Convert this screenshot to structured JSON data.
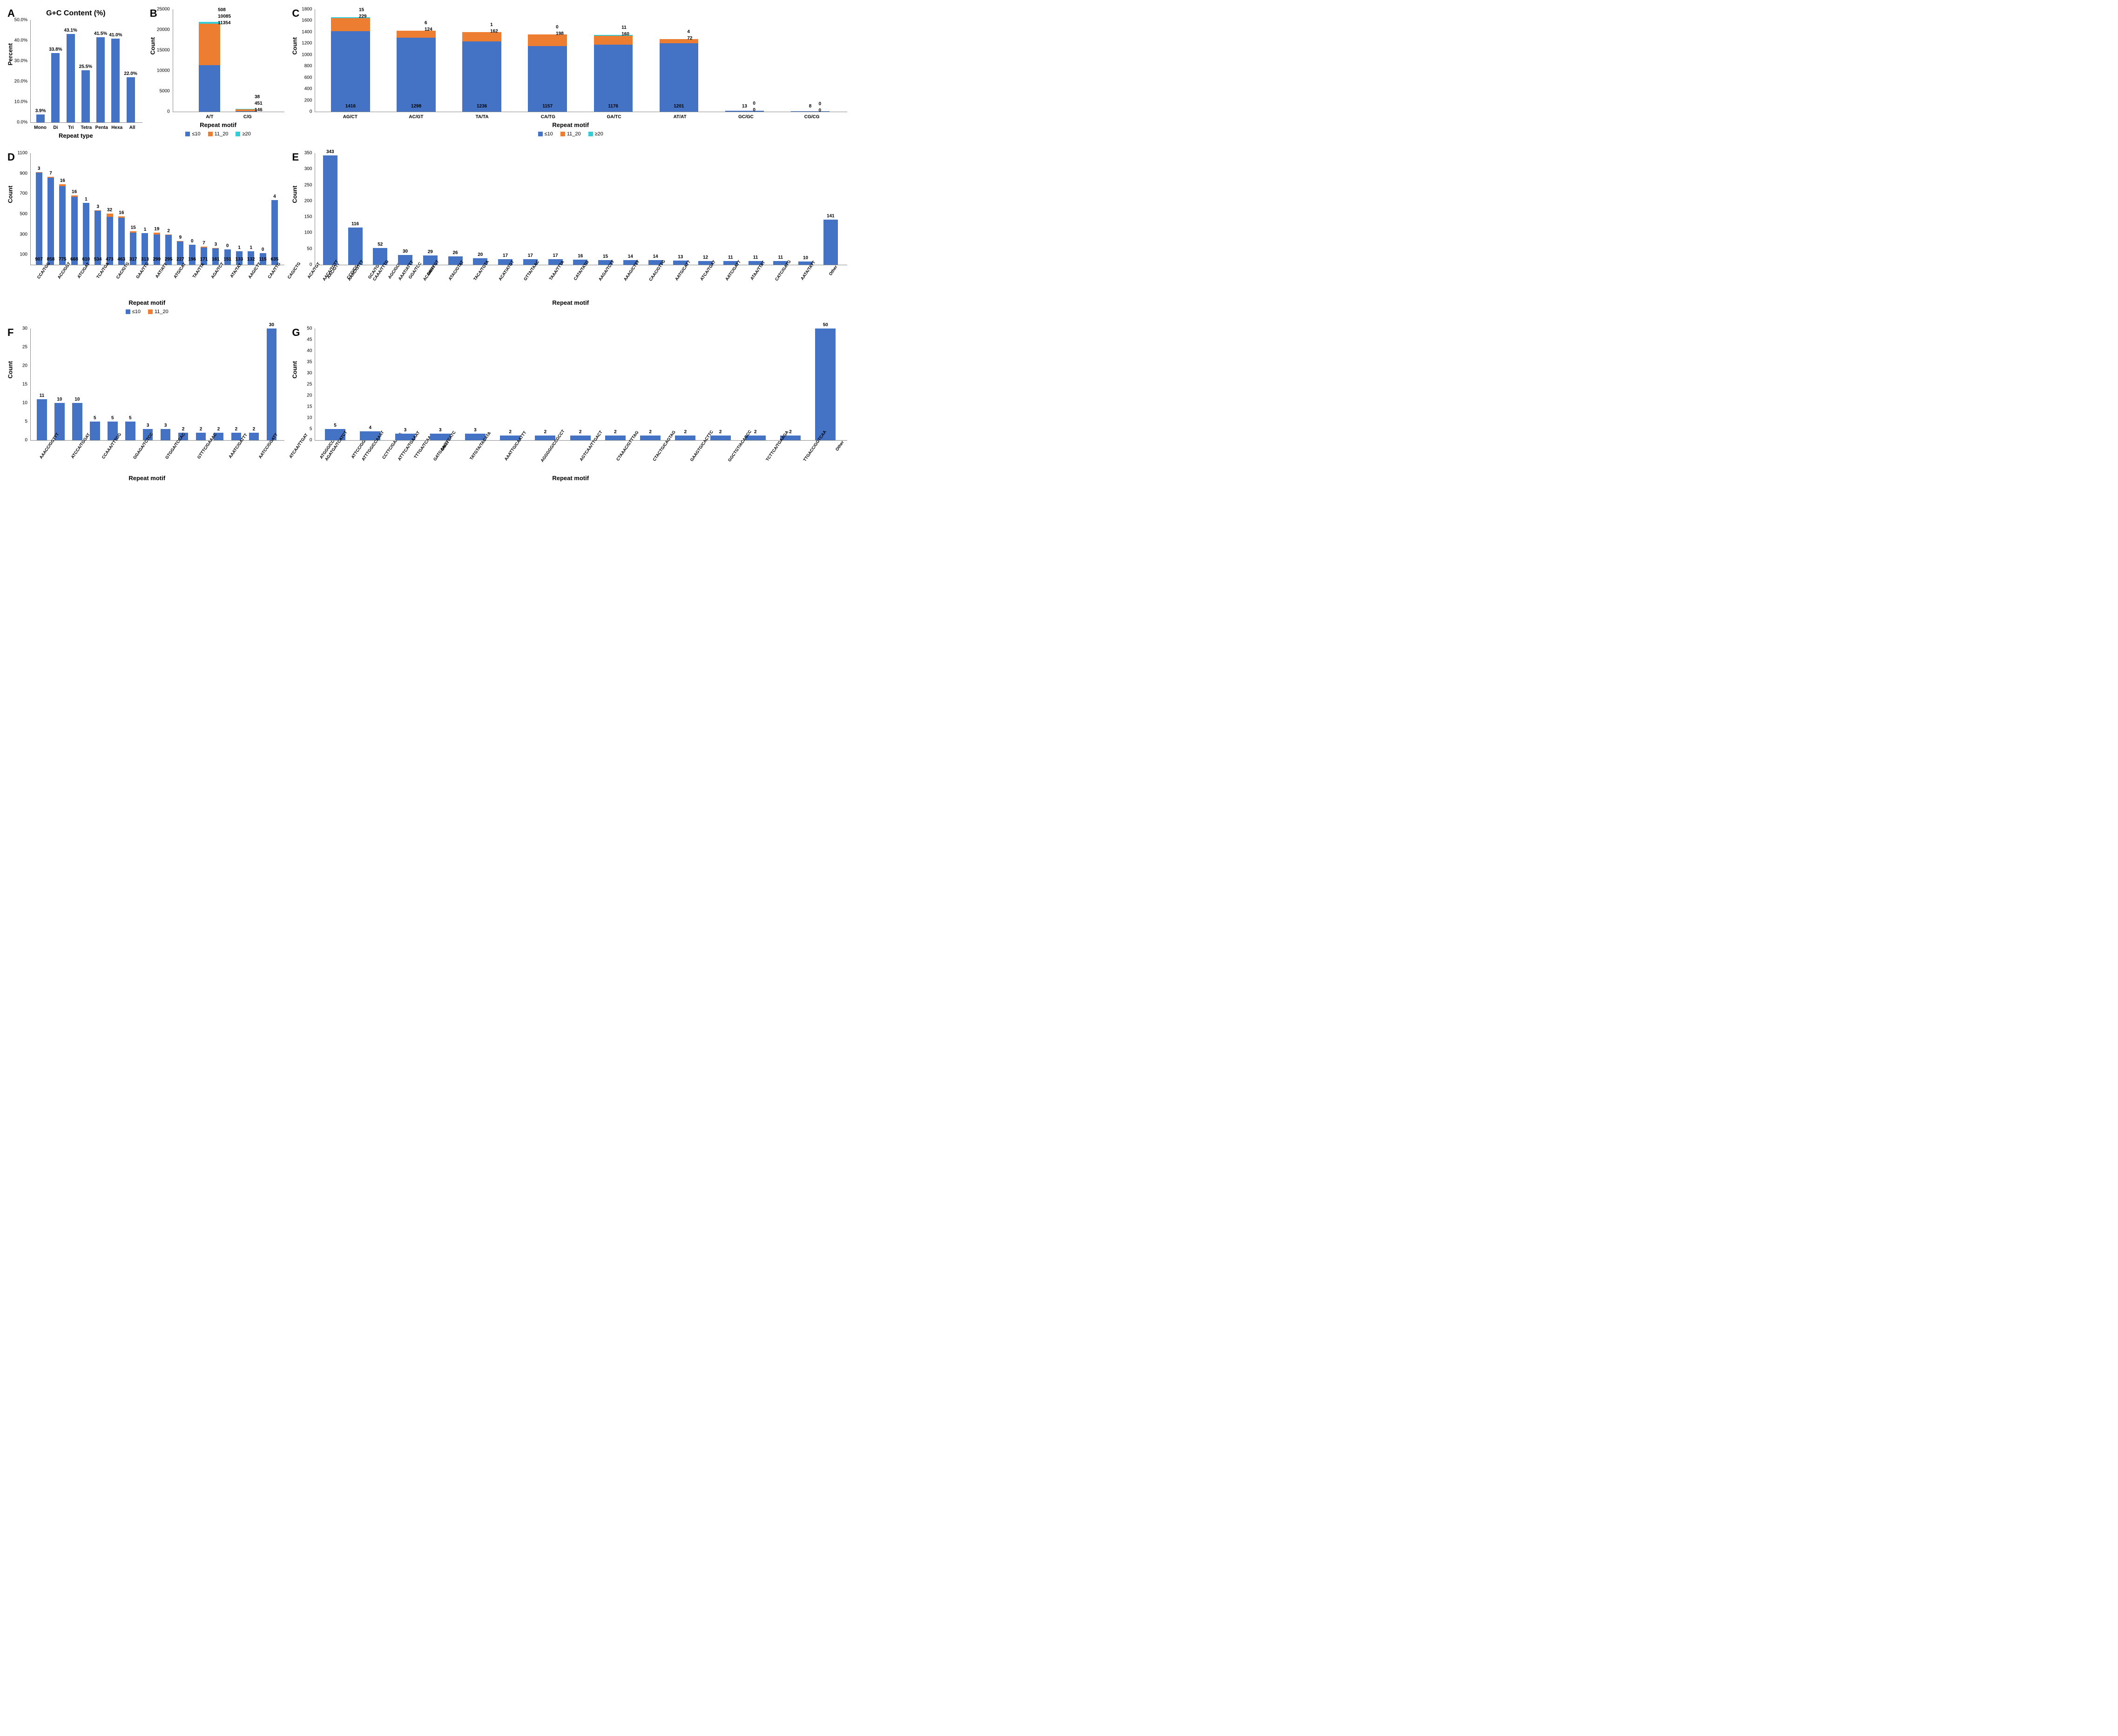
{
  "colors": {
    "series_le10": "#4472c4",
    "series_11_20": "#ed7d31",
    "series_ge20": "#34cdd7",
    "callout_pink": "#d63384",
    "axis": "#888888",
    "text": "#000000",
    "bg": "#ffffff"
  },
  "legendLabels": {
    "le10": "≤10",
    "mid": "11_20",
    "ge20": "≥20"
  },
  "panelA": {
    "letter": "A",
    "title": "G+C Content (%)",
    "type": "bar",
    "ylabel": "Percent",
    "xlabel": "Repeat type",
    "ylim": [
      0,
      50
    ],
    "ytick_step": 10,
    "ytick_suffix": ".0%",
    "bar_color": "#4472c4",
    "categories": [
      "Mono",
      "Di",
      "Tri",
      "Tetra",
      "Penta",
      "Hexa",
      "All"
    ],
    "values": [
      3.9,
      33.8,
      43.1,
      25.5,
      41.5,
      41.0,
      22.0
    ],
    "value_labels": [
      "3.9%",
      "33.8%",
      "43.1%",
      "25.5%",
      "41.5%",
      "41.0%",
      "22.0%"
    ]
  },
  "panelB": {
    "letter": "B",
    "type": "stacked-bar",
    "ylabel": "Count",
    "xlabel": "Repeat motif",
    "ylim": [
      0,
      25000
    ],
    "ytick_step": 5000,
    "categories": [
      "A/T",
      "C/G"
    ],
    "series": [
      {
        "name": "≤10",
        "color": "#4472c4",
        "values": [
          11354,
          146
        ]
      },
      {
        "name": "11_20",
        "color": "#ed7d31",
        "values": [
          10085,
          451
        ]
      },
      {
        "name": "≥20",
        "color": "#34cdd7",
        "values": [
          508,
          38
        ]
      }
    ],
    "callouts": [
      {
        "cat": 0,
        "labels": [
          "508",
          "10085",
          "11354"
        ],
        "colors": [
          "#34cdd7",
          "#d63384",
          "#4472c4"
        ]
      },
      {
        "cat": 1,
        "labels": [
          "38",
          "451",
          "146"
        ],
        "colors": [
          "#34cdd7",
          "#d63384",
          "#4472c4"
        ]
      }
    ]
  },
  "panelC": {
    "letter": "C",
    "type": "stacked-bar",
    "ylabel": "Count",
    "xlabel": "Repeat motif",
    "ylim": [
      0,
      1800
    ],
    "ytick_step": 200,
    "categories": [
      "AG/CT",
      "AC/GT",
      "TA/TA",
      "CA/TG",
      "GA/TC",
      "AT/AT",
      "GC/GC",
      "CG/CG"
    ],
    "series": [
      {
        "name": "≤10",
        "color": "#4472c4",
        "values": [
          1416,
          1298,
          1236,
          1157,
          1176,
          1201,
          13,
          8
        ]
      },
      {
        "name": "11_20",
        "color": "#ed7d31",
        "values": [
          229,
          124,
          162,
          198,
          160,
          72,
          0,
          0
        ]
      },
      {
        "name": "≥20",
        "color": "#34cdd7",
        "values": [
          15,
          6,
          1,
          0,
          11,
          4,
          0,
          0
        ]
      }
    ],
    "value_labels_bottom": [
      "1416",
      "1298",
      "1236",
      "1157",
      "1176",
      "1201",
      "13",
      "8"
    ],
    "callouts": [
      {
        "cat": 0,
        "labels": [
          "15",
          "229"
        ]
      },
      {
        "cat": 1,
        "labels": [
          "6",
          "124"
        ]
      },
      {
        "cat": 2,
        "labels": [
          "1",
          "162"
        ]
      },
      {
        "cat": 3,
        "labels": [
          "0",
          "198"
        ]
      },
      {
        "cat": 4,
        "labels": [
          "11",
          "160"
        ]
      },
      {
        "cat": 5,
        "labels": [
          "4",
          "72"
        ]
      },
      {
        "cat": 6,
        "labels": [
          "0",
          "0"
        ]
      },
      {
        "cat": 7,
        "labels": [
          "0",
          "0"
        ]
      }
    ]
  },
  "panelD": {
    "letter": "D",
    "type": "stacked-bar",
    "ylabel": "Count",
    "xlabel": "Repeat motif",
    "ylim": [
      0,
      1100
    ],
    "ytick_step": 200,
    "ytick_start": 100,
    "categories": [
      "CCA/TGG",
      "ACC/GGT",
      "ATC/GAT",
      "TCA/TGA",
      "CAC/GTG",
      "GAA/TTC",
      "AAT/ATT",
      "ATG/CAT",
      "TAA/TTA",
      "AGA/TCT",
      "ATA/TAT",
      "AAG/CTT",
      "CAA/TTG",
      "CAG/CTG",
      "ACA/TGT",
      "AAC/GTT",
      "CCG/CGG",
      "GCA/TGC",
      "AGC/GCT",
      "GGA/TCC",
      "Other"
    ],
    "series": [
      {
        "name": "≤10",
        "color": "#4472c4",
        "values": [
          907,
          858,
          775,
          668,
          610,
          534,
          473,
          463,
          317,
          313,
          299,
          295,
          227,
          196,
          171,
          161,
          151,
          133,
          132,
          115,
          635
        ]
      },
      {
        "name": "11_20",
        "color": "#ed7d31",
        "values": [
          3,
          7,
          16,
          16,
          1,
          3,
          32,
          16,
          15,
          1,
          19,
          2,
          9,
          0,
          7,
          3,
          0,
          1,
          1,
          0,
          4
        ]
      }
    ],
    "value_labels_bottom": [
      "907",
      "858",
      "775",
      "668",
      "610",
      "534",
      "473",
      "463",
      "317",
      "313",
      "299",
      "295",
      "227",
      "196",
      "171",
      "161",
      "151",
      "133",
      "132",
      "115",
      "635"
    ],
    "top_labels": [
      "3",
      "7",
      "16",
      "16",
      "1",
      "3",
      "32",
      "16",
      "15",
      "1",
      "19",
      "2",
      "9",
      "0",
      "7",
      "3",
      "0",
      "1",
      "1",
      "0",
      "4"
    ]
  },
  "panelE": {
    "letter": "E",
    "type": "bar",
    "ylabel": "Count",
    "xlabel": "Repeat motif",
    "ylim": [
      0,
      350
    ],
    "ytick_step": 50,
    "bar_color": "#4472c4",
    "categories": [
      "AACA/TGTT",
      "AAAC/GTTT",
      "CAAA/TTTG",
      "AAAT/ATTT",
      "ACAA/TTGT",
      "ATAC/GTAT",
      "TACA/TGTA",
      "ACAT/ATGT",
      "GTTA/TAAC",
      "TAAA/TTTA",
      "CATA/TATG",
      "AAGA/TCTT",
      "AAAG/CTTT",
      "CAAC/GTTG",
      "AATG/CATT",
      "ATCA/TGAT",
      "AATC/GATT",
      "ATAA/TTAT",
      "CATC/GATG",
      "AATA/TATT",
      "Other"
    ],
    "values": [
      343,
      116,
      52,
      30,
      29,
      26,
      20,
      17,
      17,
      17,
      16,
      15,
      14,
      14,
      13,
      12,
      11,
      11,
      11,
      10,
      141
    ],
    "value_labels": [
      "343",
      "116",
      "52",
      "30",
      "29",
      "26",
      "20",
      "17",
      "17",
      "17",
      "16",
      "15",
      "14",
      "14",
      "13",
      "12",
      "11",
      "11",
      "11",
      "10",
      "141"
    ]
  },
  "panelF": {
    "letter": "F",
    "type": "bar",
    "ylabel": "Count",
    "xlabel": "Repeat motif",
    "ylim": [
      0,
      30
    ],
    "ytick_step": 5,
    "bar_color": "#4472c4",
    "categories": [
      "AAACC/GGTTT",
      "ATCCA/TGGAT",
      "CCAAA/TTTGG",
      "GGAGA/TCTCC",
      "GTGGA/TCCAC",
      "GTTTC/GAAAC",
      "AAATC/GATTT",
      "AATCC/GGATT",
      "ATCAA/TTGAT",
      "ATGGG/CCCAT",
      "ATTCC/GGAAT",
      "CCTTC/GAAGG",
      "TTTGA/TCAAA",
      "Other"
    ],
    "values": [
      11,
      10,
      10,
      5,
      5,
      5,
      3,
      3,
      2,
      2,
      2,
      2,
      2,
      30
    ],
    "value_labels": [
      "11",
      "10",
      "10",
      "5",
      "5",
      "5",
      "3",
      "3",
      "2",
      "2",
      "2",
      "2",
      "2",
      "30"
    ]
  },
  "panelG": {
    "letter": "G",
    "type": "bar",
    "ylabel": "Count",
    "xlabel": "Repeat motif",
    "ylim": [
      0,
      50
    ],
    "ytick_step": 5,
    "bar_color": "#4472c4",
    "categories": [
      "AGATGA/TCATCT",
      "ATTTGG/CCAAAT",
      "ATTTCA/TGAAAT",
      "GATGAA/TTCATC",
      "TATGTA/TACATA",
      "AAATTG/CAATTT",
      "AGGGGG/CCGCCT",
      "AGTCAA/TTGACT",
      "CTAAAC/GTTTAG",
      "CTACTG/CAGTAG",
      "GAAGTG/CACTTC",
      "GGCTGT/ACAGCC",
      "TCTTCA/TGAAGA",
      "TTGACC/GGTCAA",
      "Other"
    ],
    "values": [
      5,
      4,
      3,
      3,
      3,
      2,
      2,
      2,
      2,
      2,
      2,
      2,
      2,
      2,
      50
    ],
    "value_labels": [
      "5",
      "4",
      "3",
      "3",
      "3",
      "2",
      "2",
      "2",
      "2",
      "2",
      "2",
      "2",
      "2",
      "2",
      "50"
    ]
  }
}
